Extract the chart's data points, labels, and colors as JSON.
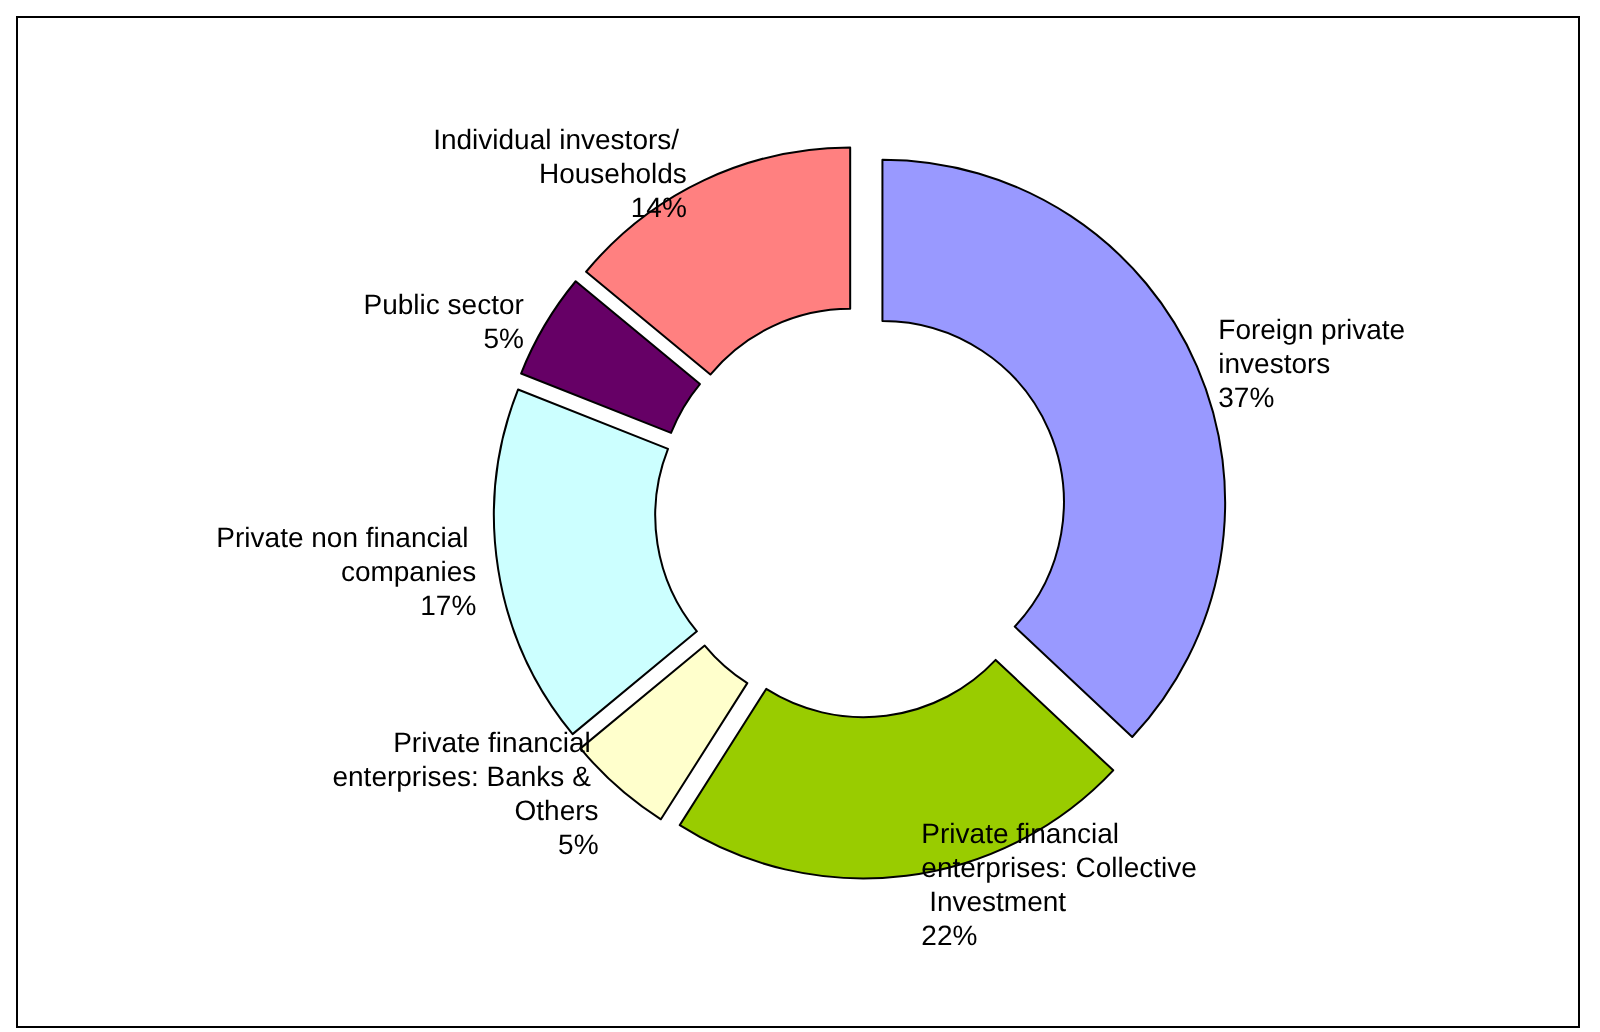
{
  "chart_data": {
    "type": "donut",
    "categories": [
      "Foreign private investors",
      "Private financial enterprises: Collective Investment",
      "Private financial enterprises: Banks & Others",
      "Private non financial companies",
      "Public sector",
      "Individual investors/ Households"
    ],
    "values": [
      37,
      22,
      5,
      17,
      5,
      14
    ],
    "colors": [
      "#9999ff",
      "#99cc00",
      "#ffffcc",
      "#ccffff",
      "#660066",
      "#ff8080"
    ],
    "value_labels": [
      "37%",
      "22%",
      "5%",
      "17%",
      "5%",
      "14%"
    ],
    "legend": false
  }
}
